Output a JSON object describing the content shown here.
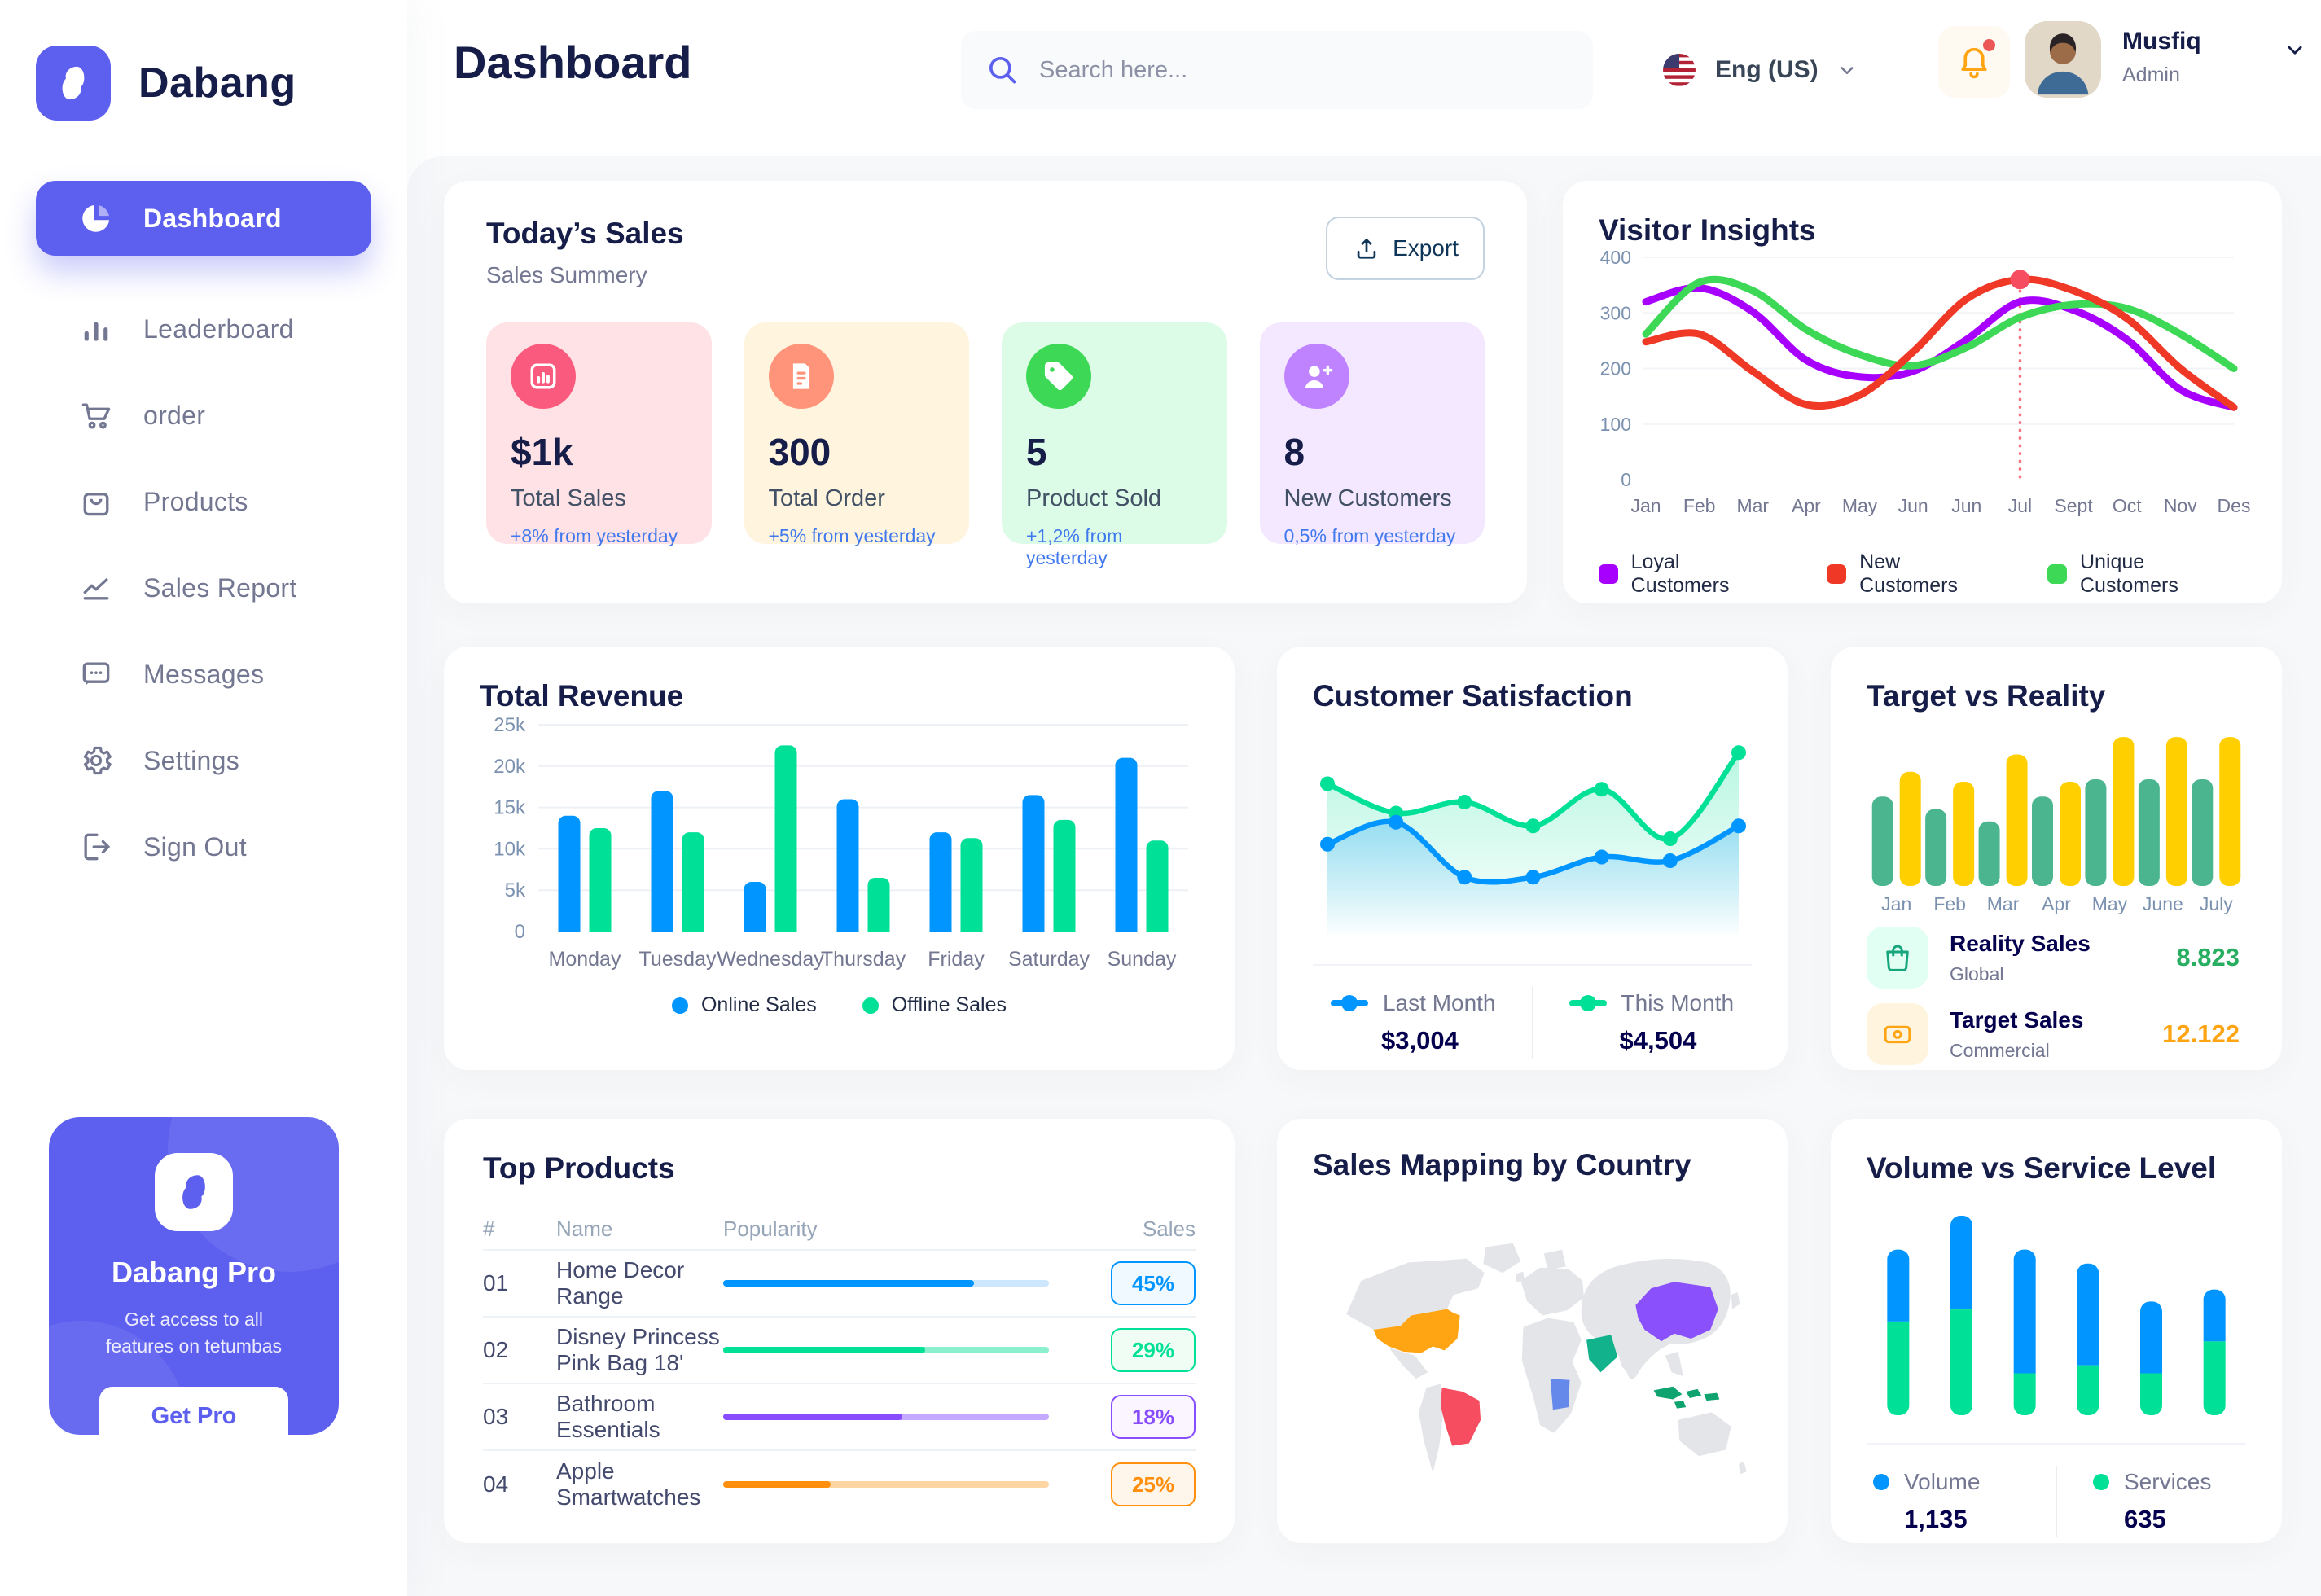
{
  "app": {
    "brand": "Dabang",
    "page_title": "Dashboard",
    "accent_color": "#5D5FEF"
  },
  "topbar": {
    "search_placeholder": "Search here...",
    "language": "Eng (US)",
    "user": {
      "name": "Musfiq",
      "role": "Admin"
    }
  },
  "sidebar": {
    "items": [
      {
        "label": "Dashboard",
        "icon": "pie-chart-icon",
        "active": true
      },
      {
        "label": "Leaderboard",
        "icon": "bar-chart-icon",
        "active": false
      },
      {
        "label": "order",
        "icon": "cart-icon",
        "active": false
      },
      {
        "label": "Products",
        "icon": "bag-icon",
        "active": false
      },
      {
        "label": "Sales Report",
        "icon": "line-chart-icon",
        "active": false
      },
      {
        "label": "Messages",
        "icon": "message-icon",
        "active": false
      },
      {
        "label": "Settings",
        "icon": "gear-icon",
        "active": false
      },
      {
        "label": "Sign Out",
        "icon": "sign-out-icon",
        "active": false
      }
    ],
    "pro_card": {
      "title": "Dabang Pro",
      "subtitle": "Get access to all features on tetumbas",
      "button": "Get Pro"
    }
  },
  "today_sales": {
    "title": "Today’s Sales",
    "subtitle": "Sales Summery",
    "export_label": "Export",
    "stats": [
      {
        "value": "$1k",
        "label": "Total Sales",
        "delta": "+8% from yesterday",
        "bg": "#FFE2E5",
        "icon_bg": "#FA5A7D",
        "icon": "sales-chart-icon"
      },
      {
        "value": "300",
        "label": "Total Order",
        "delta": "+5% from yesterday",
        "bg": "#FFF4DE",
        "icon_bg": "#FF947A",
        "icon": "order-receipt-icon"
      },
      {
        "value": "5",
        "label": "Product Sold",
        "delta": "+1,2% from yesterday",
        "bg": "#DCFCE7",
        "icon_bg": "#3CD856",
        "icon": "tag-icon"
      },
      {
        "value": "8",
        "label": "New Customers",
        "delta": "0,5% from yesterday",
        "bg": "#F3E8FF",
        "icon_bg": "#BF83FF",
        "icon": "user-plus-icon"
      }
    ]
  },
  "chart_data": [
    {
      "id": "visitor_insights",
      "type": "line",
      "title": "Visitor Insights",
      "x_labels": [
        "Jan",
        "Feb",
        "Mar",
        "Apr",
        "May",
        "Jun",
        "Jun",
        "Jul",
        "Sept",
        "Oct",
        "Nov",
        "Des"
      ],
      "yticks": [
        0,
        100,
        200,
        300,
        400
      ],
      "ylim": [
        0,
        400
      ],
      "grid": true,
      "legend_position": "bottom",
      "series": [
        {
          "name": "Loyal Customers",
          "color": "#A700FF",
          "values": [
            320,
            345,
            302,
            215,
            185,
            195,
            252,
            320,
            305,
            252,
            162,
            130
          ]
        },
        {
          "name": "New Customers",
          "color": "#EF3826",
          "values": [
            248,
            262,
            195,
            135,
            152,
            230,
            325,
            360,
            340,
            290,
            200,
            130
          ]
        },
        {
          "name": "Unique Customers",
          "color": "#3CD856",
          "values": [
            262,
            355,
            340,
            270,
            225,
            205,
            238,
            292,
            315,
            308,
            262,
            200
          ]
        }
      ],
      "annotation": {
        "series": "New Customers",
        "index": 7,
        "label": "Jul",
        "color": "#F64E60"
      }
    },
    {
      "id": "total_revenue",
      "type": "bar",
      "title": "Total Revenue",
      "categories": [
        "Monday",
        "Tuesday",
        "Wednesday",
        "Thursday",
        "Friday",
        "Saturday",
        "Sunday"
      ],
      "yticks": [
        0,
        5,
        10,
        15,
        20,
        25
      ],
      "ytick_labels": [
        "0",
        "5k",
        "10k",
        "15k",
        "20k",
        "25k"
      ],
      "ylim": [
        0,
        25
      ],
      "grid": true,
      "legend_position": "bottom",
      "series": [
        {
          "name": "Online Sales",
          "color": "#0095FF",
          "values": [
            14,
            17,
            6,
            16,
            12,
            16.5,
            21
          ]
        },
        {
          "name": "Offline Sales",
          "color": "#00E096",
          "values": [
            12.5,
            12,
            22.5,
            6.5,
            11.3,
            13.5,
            11
          ]
        }
      ]
    },
    {
      "id": "customer_satisfaction",
      "type": "area",
      "title": "Customer Satisfaction",
      "ylim": [
        0,
        100
      ],
      "grid": false,
      "legend_position": "bottom",
      "series": [
        {
          "name": "Last Month",
          "total": "$3,004",
          "color": "#0095FF",
          "values": [
            45,
            57,
            27,
            27,
            38,
            36,
            55
          ]
        },
        {
          "name": "This Month",
          "total": "$4,504",
          "color": "#00E096",
          "values": [
            78,
            62,
            68,
            55,
            75,
            48,
            95
          ]
        }
      ]
    },
    {
      "id": "target_vs_reality",
      "type": "bar",
      "title": "Target vs Reality",
      "categories": [
        "Jan",
        "Feb",
        "Mar",
        "Apr",
        "May",
        "June",
        "July"
      ],
      "ylim": [
        0,
        12.6
      ],
      "grid": false,
      "legend_position": "bottom",
      "series": [
        {
          "name": "Reality Sales",
          "subtitle": "Global",
          "value_label": "8.823",
          "color": "#4AB58E",
          "value_color": "#27AE60",
          "tile_bg": "#E2FFF3",
          "icon": "shopping-bag-icon",
          "values": [
            7.2,
            6.2,
            5.2,
            7.2,
            8.6,
            8.6,
            8.6
          ]
        },
        {
          "name": "Target Sales",
          "subtitle": "Commercial",
          "value_label": "12.122",
          "color": "#FFCF00",
          "value_color": "#FFA412",
          "tile_bg": "#FFF4DE",
          "icon": "ticket-icon",
          "values": [
            9.2,
            8.4,
            10.6,
            8.4,
            12,
            12,
            12
          ]
        }
      ]
    },
    {
      "id": "volume_service_level",
      "type": "stacked-bar",
      "title": "Volume vs Service Level",
      "ylim": [
        0,
        1000
      ],
      "grid": false,
      "legend_position": "bottom",
      "series": [
        {
          "name": "Volume",
          "total": "1,135",
          "color": "#0095FF",
          "values": [
            360,
            470,
            620,
            510,
            360,
            260
          ]
        },
        {
          "name": "Services",
          "total": "635",
          "color": "#00E096",
          "values": [
            470,
            530,
            210,
            250,
            210,
            370
          ]
        }
      ]
    }
  ],
  "top_products": {
    "title": "Top Products",
    "columns": {
      "rank": "#",
      "name": "Name",
      "popularity": "Popularity",
      "sales": "Sales"
    },
    "rows": [
      {
        "rank": "01",
        "name": "Home Decor Range",
        "popularity": 77,
        "sales": "45%",
        "color": "#0095FF",
        "track": "#CDE7FF",
        "badge_bg": "#F0F9FF"
      },
      {
        "rank": "02",
        "name": "Disney Princess Pink Bag 18'",
        "popularity": 62,
        "sales": "29%",
        "color": "#00E096",
        "track": "#8CF0CF",
        "badge_bg": "#F0FDF4"
      },
      {
        "rank": "03",
        "name": "Bathroom Essentials",
        "popularity": 55,
        "sales": "18%",
        "color": "#884DFF",
        "track": "#C5A8FF",
        "badge_bg": "#FBF5FF"
      },
      {
        "rank": "04",
        "name": "Apple Smartwatches",
        "popularity": 33,
        "sales": "25%",
        "color": "#FF8F0D",
        "track": "#FFD5A4",
        "badge_bg": "#FFF6EB"
      }
    ]
  },
  "sales_map": {
    "title": "Sales Mapping by Country",
    "countries": [
      {
        "name": "United States",
        "color": "#FFA412"
      },
      {
        "name": "Brazil",
        "color": "#F64E60"
      },
      {
        "name": "DR Congo",
        "color": "#6589EB"
      },
      {
        "name": "Saudi Arabia",
        "color": "#12B28C"
      },
      {
        "name": "China",
        "color": "#8950FC"
      },
      {
        "name": "Indonesia",
        "color": "#0EA36F"
      }
    ]
  }
}
